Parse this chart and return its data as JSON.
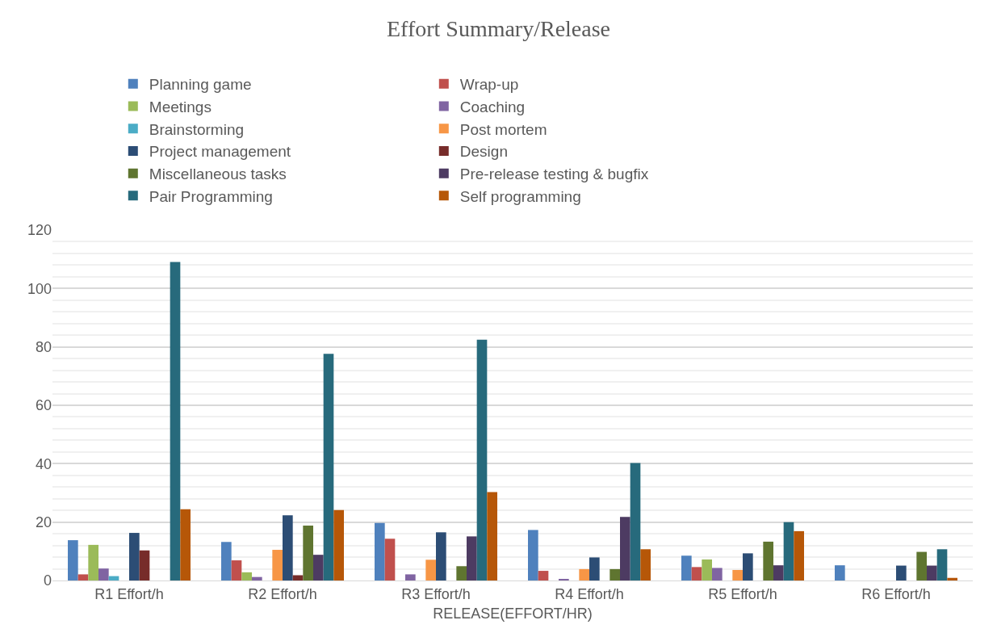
{
  "chart_data": {
    "type": "bar",
    "title": "Effort Summary/Release",
    "xlabel": "RELEASE(EFFORT/HR)",
    "categories": [
      "R1 Effort/h",
      "R2 Effort/h",
      "R3 Effort/h",
      "R4 Effort/h",
      "R5 Effort/h",
      "R6 Effort/h"
    ],
    "series": [
      {
        "name": "Planning game",
        "color": "#4f81bd",
        "values": [
          13.8,
          13.2,
          19.7,
          17.3,
          8.5,
          5.2
        ]
      },
      {
        "name": "Wrap-up",
        "color": "#c0504d",
        "values": [
          2.1,
          6.9,
          14.3,
          3.3,
          4.6,
          null
        ]
      },
      {
        "name": "Meetings",
        "color": "#9bbb59",
        "values": [
          12.2,
          2.8,
          null,
          null,
          7.2,
          null
        ]
      },
      {
        "name": "Coaching",
        "color": "#8064a2",
        "values": [
          4.1,
          1.2,
          2.1,
          0.3,
          4.3,
          null
        ]
      },
      {
        "name": "Brainstorming",
        "color": "#4bacc6",
        "values": [
          1.5,
          null,
          null,
          null,
          null,
          null
        ]
      },
      {
        "name": "Post mortem",
        "color": "#f79646",
        "values": [
          null,
          10.5,
          7.1,
          3.9,
          3.6,
          null
        ]
      },
      {
        "name": "Project management",
        "color": "#2c4d75",
        "values": [
          16.3,
          22.3,
          16.5,
          7.9,
          9.3,
          5.1
        ]
      },
      {
        "name": "Design",
        "color": "#772c2a",
        "values": [
          10.3,
          1.8,
          null,
          null,
          null,
          null
        ]
      },
      {
        "name": "Miscellaneous tasks",
        "color": "#5f7530",
        "values": [
          null,
          18.8,
          4.9,
          3.9,
          13.3,
          9.8
        ]
      },
      {
        "name": "Pre-release testing & bugfix",
        "color": "#4d3b62",
        "values": [
          null,
          8.8,
          15.1,
          21.8,
          5.2,
          5.1
        ]
      },
      {
        "name": "Pair Programming",
        "color": "#276a7c",
        "values": [
          109.1,
          77.6,
          82.5,
          40.2,
          20,
          10.7
        ]
      },
      {
        "name": "Self programming",
        "color": "#b65708",
        "values": [
          24.4,
          24.1,
          30.3,
          10.7,
          16.9,
          0.9
        ]
      }
    ],
    "ylim": [
      0,
      120
    ],
    "yticks": [
      0,
      20,
      40,
      60,
      80,
      100,
      120
    ],
    "grid": "y",
    "legend": "top"
  }
}
